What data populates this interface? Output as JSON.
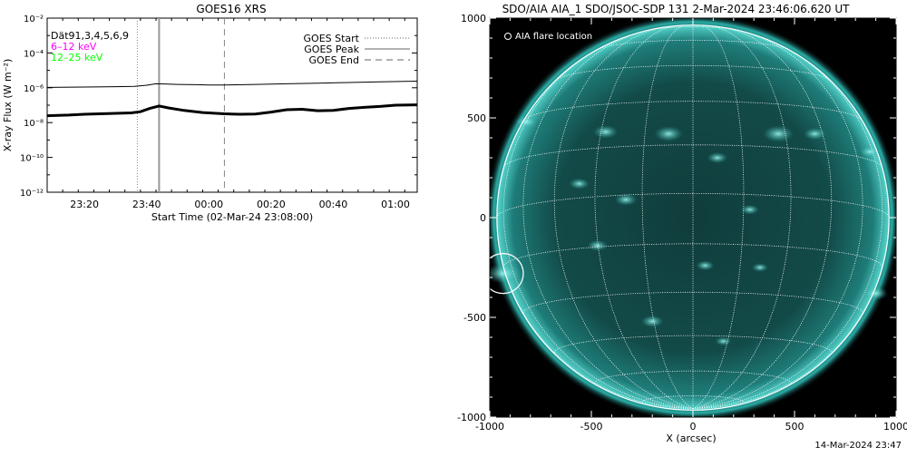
{
  "chart_data": [
    {
      "type": "line",
      "title": "GOES16 XRS",
      "xlabel": "Start Time (02-Mar-24 23:08:00)",
      "ylabel": "X-ray Flux (W m⁻²)",
      "y_scale": "log",
      "ylim": [
        1e-12,
        0.01
      ],
      "xlim": [
        "23:08",
        "01:07"
      ],
      "x_tick_labels": [
        "23:20",
        "23:40",
        "00:00",
        "00:20",
        "00:40",
        "01:00"
      ],
      "y_tick_labels": [
        "10⁻¹²",
        "10⁻¹⁰",
        "10⁻⁸",
        "10⁻⁶",
        "10⁻⁴",
        "10⁻²"
      ],
      "grid": false,
      "legend_placement": "top-right",
      "legend": [
        {
          "label": "GOES Start",
          "style": "dotted"
        },
        {
          "label": "GOES Peak",
          "style": "solid"
        },
        {
          "label": "GOES End",
          "style": "dashed"
        }
      ],
      "channel_labels": [
        {
          "text": "Dät91,3,4,5,6,9",
          "color": "#000000"
        },
        {
          "text": "6–12 keV",
          "color": "#ff00ff"
        },
        {
          "text": "12–25 keV",
          "color": "#00ff00"
        }
      ],
      "markers": {
        "start": "23:37",
        "peak": "23:44",
        "end": "00:05"
      },
      "series": [
        {
          "key": "long",
          "color": "#000000",
          "x": [
            "23:08",
            "23:20",
            "23:30",
            "23:36",
            "23:40",
            "23:43",
            "23:46",
            "23:50",
            "23:56",
            "00:00",
            "00:05",
            "00:15",
            "00:25",
            "00:35",
            "00:45",
            "00:55",
            "01:07"
          ],
          "y": [
            1.05e-06,
            1.1e-06,
            1.15e-06,
            1.2e-06,
            1.4e-06,
            1.7e-06,
            1.65e-06,
            1.55e-06,
            1.5e-06,
            1.45e-06,
            1.45e-06,
            1.55e-06,
            1.7e-06,
            1.85e-06,
            2e-06,
            2.2e-06,
            2.4e-06
          ]
        },
        {
          "key": "short",
          "color": "#000000",
          "x": [
            "23:08",
            "23:15",
            "23:20",
            "23:25",
            "23:30",
            "23:35",
            "23:38",
            "23:41",
            "23:44",
            "23:47",
            "23:52",
            "23:58",
            "00:05",
            "00:10",
            "00:15",
            "00:20",
            "00:25",
            "00:30",
            "00:35",
            "00:40",
            "00:45",
            "00:50",
            "00:55",
            "01:00",
            "01:07"
          ],
          "y": [
            2.5e-08,
            2.7e-08,
            3e-08,
            3.2e-08,
            3.4e-08,
            3.6e-08,
            4.2e-08,
            6.5e-08,
            9e-08,
            7e-08,
            5e-08,
            3.8e-08,
            3.2e-08,
            3e-08,
            3.1e-08,
            4e-08,
            5.5e-08,
            5.8e-08,
            4.8e-08,
            5e-08,
            6.5e-08,
            7.5e-08,
            8.5e-08,
            1e-07,
            1.05e-07
          ]
        }
      ]
    },
    {
      "type": "image",
      "title": "SDO/AIA AIA_1 SDO/JSOC-SDP 131  2-Mar-2024 23:46:06.620 UT",
      "xlabel": "X (arcsec)",
      "ylabel": "",
      "xlim": [
        -1000,
        1000
      ],
      "ylim": [
        -1000,
        1000
      ],
      "x_tick_labels": [
        "-1000",
        "-500",
        "0",
        "500",
        "1000"
      ],
      "y_tick_labels": [
        "-1000",
        "-500",
        "0",
        "500",
        "1000"
      ],
      "legend_placement": "top-left",
      "legend": [
        {
          "label": "AIA flare location",
          "marker": "circle"
        }
      ],
      "solar_radius_arcsec": 965,
      "flare_location": {
        "x_arcsec": -935,
        "y_arcsec": -280,
        "radius_arcsec": 100
      },
      "colors": {
        "disk": "#0e4a46",
        "bright": "#7ff0ea",
        "background": "#000000",
        "grid": "#ffffff"
      }
    }
  ],
  "footer": {
    "timestamp": "14-Mar-2024 23:47"
  }
}
